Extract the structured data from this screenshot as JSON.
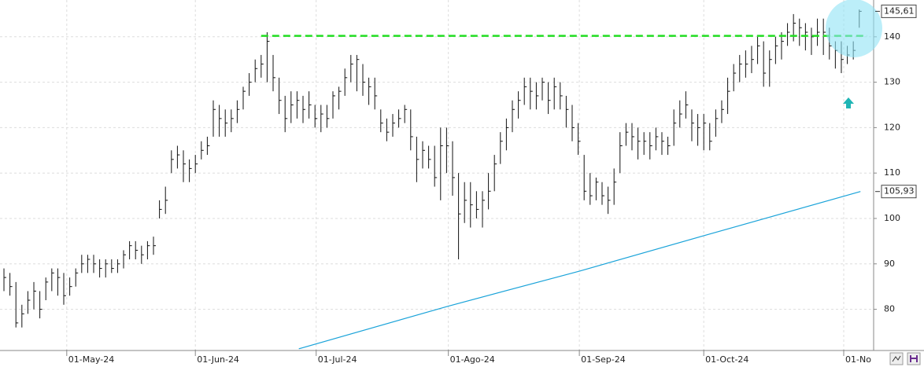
{
  "chart_data": {
    "type": "ohlc",
    "series": [
      {
        "name": "high",
        "values": [
          89,
          88,
          86,
          81,
          84,
          86,
          84,
          87,
          89,
          89,
          88,
          87,
          89,
          92,
          92,
          92,
          91,
          91,
          91,
          91,
          93,
          95,
          95,
          94,
          95,
          96,
          104,
          107,
          115,
          116,
          115,
          113,
          114,
          117,
          118,
          126,
          125,
          124,
          124,
          126,
          129,
          132,
          135,
          136,
          141,
          136,
          131,
          127,
          128,
          128,
          127,
          128,
          125,
          125,
          125,
          128,
          129,
          133,
          136,
          136,
          134,
          131,
          131,
          124,
          122,
          123,
          124,
          125,
          124,
          118,
          117,
          116,
          116,
          120,
          120,
          117,
          110,
          108,
          108,
          106,
          106,
          110,
          114,
          119,
          122,
          126,
          128,
          131,
          131,
          130,
          131,
          130,
          131,
          130,
          127,
          125,
          121,
          114,
          110,
          109,
          108,
          107,
          111,
          119,
          121,
          121,
          120,
          119,
          119,
          120,
          119,
          118,
          124,
          126,
          128,
          124,
          123,
          123,
          121,
          124,
          126,
          131,
          134,
          136,
          137,
          138,
          140,
          139,
          137,
          140,
          141,
          143,
          145,
          144,
          143,
          142,
          144,
          144,
          142,
          139,
          139,
          138,
          139,
          146
        ]
      },
      {
        "name": "low",
        "values": [
          84,
          83,
          76,
          76,
          79,
          80,
          78,
          82,
          84,
          83,
          81,
          83,
          85,
          88,
          88,
          88,
          87,
          87,
          88,
          88,
          89,
          91,
          91,
          90,
          91,
          92,
          100,
          101,
          110,
          111,
          108,
          108,
          110,
          113,
          114,
          118,
          118,
          118,
          119,
          121,
          124,
          127,
          130,
          131,
          130,
          128,
          123,
          119,
          121,
          122,
          121,
          122,
          120,
          119,
          120,
          122,
          124,
          127,
          130,
          128,
          127,
          125,
          124,
          119,
          117,
          118,
          120,
          121,
          115,
          108,
          111,
          111,
          107,
          104,
          110,
          105,
          91,
          99,
          98,
          100,
          98,
          102,
          106,
          112,
          115,
          119,
          122,
          125,
          124,
          124,
          126,
          123,
          124,
          124,
          120,
          117,
          114,
          104,
          103,
          104,
          103,
          101,
          103,
          110,
          116,
          115,
          113,
          114,
          113,
          115,
          114,
          114,
          116,
          120,
          122,
          117,
          116,
          115,
          115,
          118,
          121,
          123,
          128,
          130,
          131,
          132,
          134,
          129,
          129,
          134,
          135,
          138,
          139,
          138,
          137,
          136,
          138,
          136,
          135,
          133,
          132,
          134,
          135,
          142
        ]
      },
      {
        "name": "close",
        "values": [
          87,
          85,
          77,
          79,
          82,
          84,
          80,
          86,
          88,
          87,
          83,
          85,
          88,
          90,
          91,
          90,
          89,
          90,
          89,
          90,
          92,
          94,
          93,
          92,
          94,
          94,
          102,
          104,
          113,
          114,
          112,
          111,
          112,
          115,
          116,
          124,
          122,
          121,
          122,
          124,
          128,
          130,
          133,
          134,
          139,
          131,
          126,
          122,
          125,
          126,
          124,
          125,
          122,
          123,
          122,
          127,
          128,
          131,
          134,
          135,
          130,
          129,
          127,
          121,
          119,
          121,
          122,
          124,
          118,
          113,
          115,
          113,
          109,
          116,
          116,
          109,
          101,
          104,
          103,
          102,
          104,
          106,
          112,
          117,
          120,
          124,
          126,
          129,
          128,
          127,
          130,
          126,
          129,
          127,
          124,
          120,
          117,
          106,
          105,
          108,
          105,
          104,
          108,
          116,
          119,
          118,
          117,
          117,
          116,
          118,
          117,
          116,
          121,
          123,
          125,
          121,
          120,
          121,
          117,
          122,
          124,
          128,
          132,
          134,
          134,
          135,
          138,
          132,
          135,
          138,
          139,
          141,
          143,
          142,
          141,
          140,
          141,
          141,
          138,
          137,
          135,
          136,
          137,
          145.61
        ],
        "last_label": "145,61"
      }
    ],
    "moving_average": {
      "x": [
        49.3,
        74.3,
        96.2,
        117,
        143.2
      ],
      "values": [
        71.3,
        80.7,
        88.4,
        96.2,
        105.93
      ],
      "color": "#1aa3d9",
      "last_label": "105,93"
    },
    "resistance": {
      "value": 140.2,
      "from": 43,
      "color": "#22dd22"
    },
    "ylim": [
      71.1,
      148.1
    ],
    "yticks": [
      80,
      90,
      100,
      110,
      120,
      130,
      140
    ],
    "xlim": [
      -0.66,
      145.4
    ],
    "xticks": [
      {
        "value": 10.5,
        "label": "01-May-24"
      },
      {
        "value": 32,
        "label": "01-Jun-24"
      },
      {
        "value": 52.2,
        "label": "01-Jul-24"
      },
      {
        "value": 74.3,
        "label": "01-Ago-24"
      },
      {
        "value": 96.2,
        "label": "01-Sep-24"
      },
      {
        "value": 117,
        "label": "01-Oct-24"
      },
      {
        "value": 140.4,
        "label": "01-No"
      }
    ],
    "grid": true
  }
}
